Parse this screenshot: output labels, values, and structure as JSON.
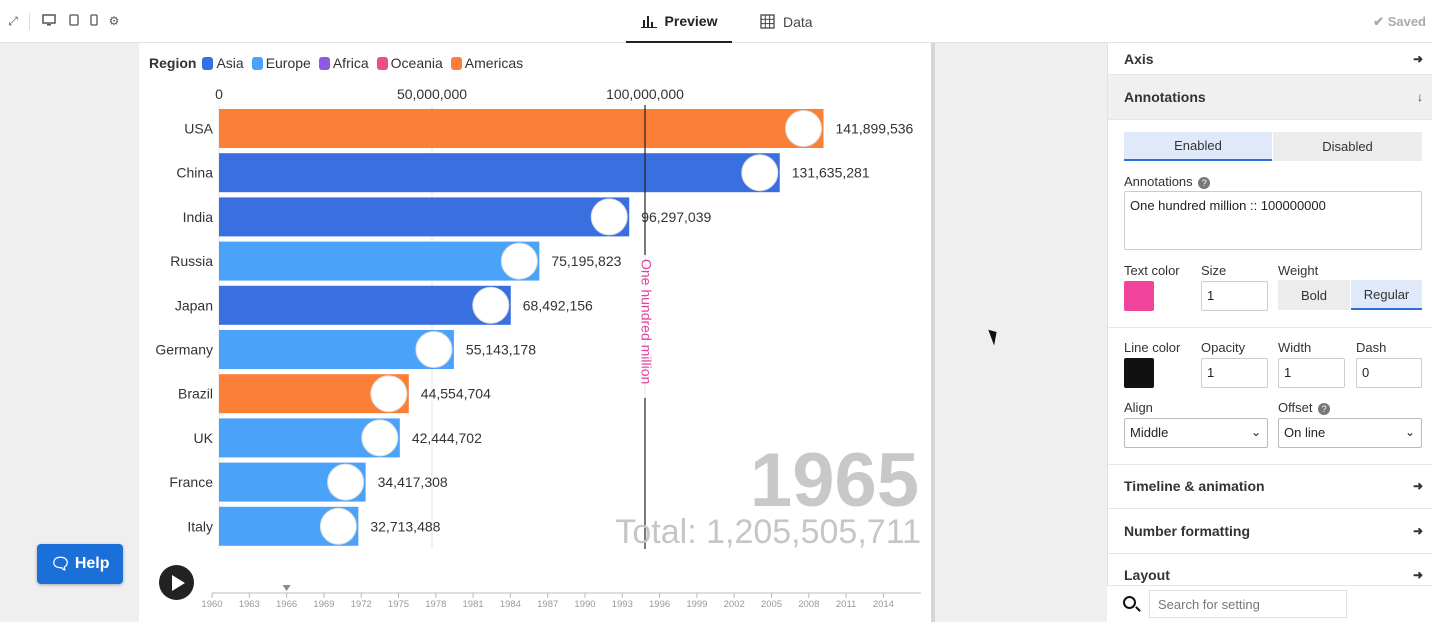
{
  "topbar": {
    "tabs": [
      {
        "label": "Preview"
      },
      {
        "label": "Data"
      }
    ],
    "saved_label": "Saved"
  },
  "chart": {
    "legend_title": "Region",
    "year": "1965",
    "total_label": "Total: 1,205,505,711",
    "annotation_label": "One hundred million",
    "timeline_ticks": [
      "1960",
      "1963",
      "1966",
      "1969",
      "1972",
      "1975",
      "1978",
      "1981",
      "1984",
      "1987",
      "1990",
      "1993",
      "1996",
      "1999",
      "2002",
      "2005",
      "2008",
      "2011",
      "2014"
    ],
    "timeline_current": "1966"
  },
  "chart_data": {
    "type": "bar",
    "orientation": "horizontal",
    "legend_title": "Region",
    "legend": [
      {
        "name": "Asia",
        "color": "#3a6fe0"
      },
      {
        "name": "Europe",
        "color": "#4aa3f8"
      },
      {
        "name": "Africa",
        "color": "#8e5be0"
      },
      {
        "name": "Oceania",
        "color": "#ec4e8c"
      },
      {
        "name": "Americas",
        "color": "#fb7f36"
      }
    ],
    "x_ticks": [
      0,
      50000000,
      100000000
    ],
    "x_tick_labels": [
      "0",
      "50,000,000",
      "100,000,000"
    ],
    "xlim": [
      0,
      141899536
    ],
    "grid": true,
    "categories": [
      "USA",
      "China",
      "India",
      "Russia",
      "Japan",
      "Germany",
      "Brazil",
      "UK",
      "France",
      "Italy"
    ],
    "values": [
      141899536,
      131635281,
      96297039,
      75195823,
      68492156,
      55143178,
      44554704,
      42444702,
      34417308,
      32713488
    ],
    "value_labels": [
      "141,899,536",
      "131,635,281",
      "96,297,039",
      "75,195,823",
      "68,492,156",
      "55,143,178",
      "44,554,704",
      "42,444,702",
      "34,417,308",
      "32,713,488"
    ],
    "regions": [
      "Americas",
      "Asia",
      "Asia",
      "Europe",
      "Asia",
      "Europe",
      "Americas",
      "Europe",
      "Europe",
      "Europe"
    ],
    "annotation": {
      "label": "One hundred million",
      "value": 100000000,
      "color": "#e0449a"
    },
    "year": "1965",
    "total": "Total: 1,205,505,711"
  },
  "help_label": "Help",
  "settings": {
    "axis_label": "Axis",
    "annotations_label": "Annotations",
    "enabled_label": "Enabled",
    "disabled_label": "Disabled",
    "annotations_field_label": "Annotations",
    "annotations_value": "One hundred million :: 100000000",
    "text_color_label": "Text color",
    "text_color": "#f0449c",
    "size_label": "Size",
    "size_value": "1",
    "weight_label": "Weight",
    "bold_label": "Bold",
    "regular_label": "Regular",
    "line_color_label": "Line color",
    "line_color": "#111111",
    "opacity_label": "Opacity",
    "opacity_value": "1",
    "width_label": "Width",
    "width_value": "1",
    "dash_label": "Dash",
    "dash_value": "0",
    "align_label": "Align",
    "align_value": "Middle",
    "offset_label": "Offset",
    "offset_value": "On line",
    "timeline_label": "Timeline & animation",
    "number_formatting_label": "Number formatting",
    "layout_label": "Layout",
    "search_placeholder": "Search for setting"
  }
}
